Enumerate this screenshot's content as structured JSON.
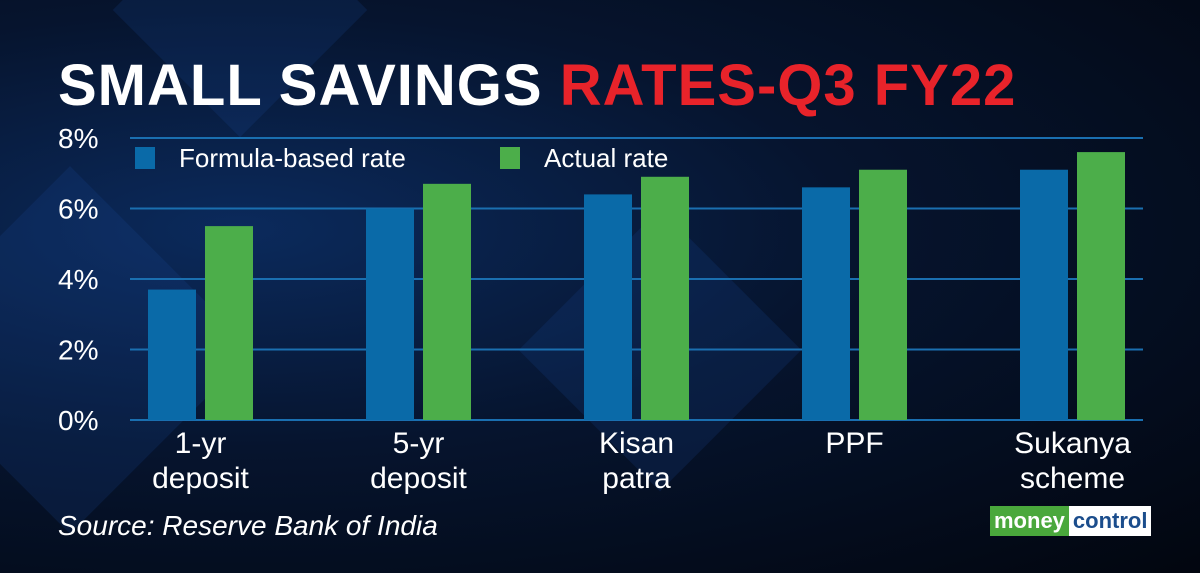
{
  "title": {
    "part1": "SMALL SAVINGS ",
    "part2": "RATES-Q3 FY22"
  },
  "source": "Source: Reserve Bank of India",
  "logo": {
    "part1": "money",
    "part2": "control"
  },
  "colors": {
    "formula": "#0a6aa8",
    "actual": "#4cae4a",
    "title_red": "#e8232a",
    "grid": "#1a6fb0"
  },
  "chart_data": {
    "type": "bar",
    "title": "SMALL SAVINGS RATES-Q3 FY22",
    "categories": [
      [
        "1-yr",
        "deposit"
      ],
      [
        "5-yr",
        "deposit"
      ],
      [
        "Kisan",
        "patra"
      ],
      [
        "PPF",
        ""
      ],
      [
        "Sukanya",
        "scheme"
      ]
    ],
    "series": [
      {
        "name": "Formula-based rate",
        "values": [
          3.7,
          6.0,
          6.4,
          6.6,
          7.1
        ]
      },
      {
        "name": "Actual rate",
        "values": [
          5.5,
          6.7,
          6.9,
          7.1,
          7.6
        ]
      }
    ],
    "yticks": [
      "0%",
      "2%",
      "4%",
      "6%",
      "8%"
    ],
    "ylim": [
      0,
      8
    ],
    "xlabel": "",
    "ylabel": "",
    "grid": true,
    "legend": "top-left"
  }
}
